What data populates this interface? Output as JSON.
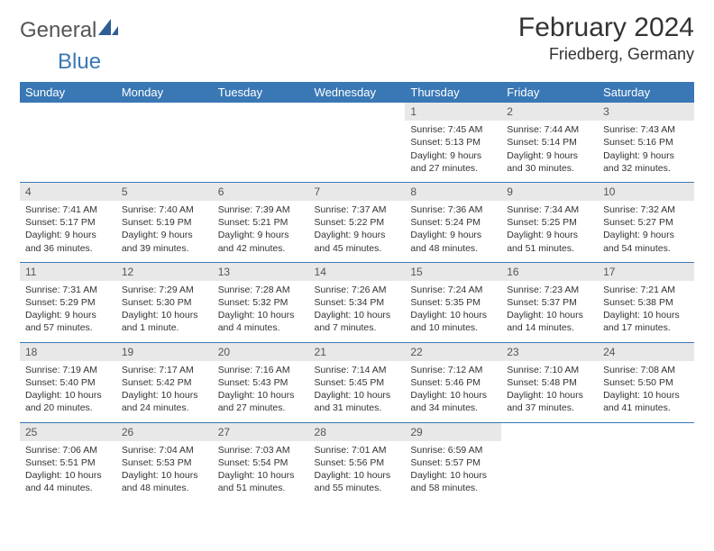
{
  "brand": {
    "name1": "General",
    "name2": "Blue"
  },
  "title": "February 2024",
  "location": "Friedberg, Germany",
  "colors": {
    "header_bg": "#3a78b5",
    "header_text": "#ffffff",
    "daynum_bg": "#e8e8e8",
    "rule": "#3a78b5",
    "text": "#333333",
    "page_bg": "#ffffff"
  },
  "typography": {
    "title_fontsize": 30,
    "location_fontsize": 18,
    "weekday_fontsize": 13,
    "cell_fontsize": 10.5
  },
  "weekdays": [
    "Sunday",
    "Monday",
    "Tuesday",
    "Wednesday",
    "Thursday",
    "Friday",
    "Saturday"
  ],
  "weeks": [
    [
      null,
      null,
      null,
      null,
      {
        "d": "1",
        "sr": "Sunrise: 7:45 AM",
        "ss": "Sunset: 5:13 PM",
        "dl": "Daylight: 9 hours and 27 minutes."
      },
      {
        "d": "2",
        "sr": "Sunrise: 7:44 AM",
        "ss": "Sunset: 5:14 PM",
        "dl": "Daylight: 9 hours and 30 minutes."
      },
      {
        "d": "3",
        "sr": "Sunrise: 7:43 AM",
        "ss": "Sunset: 5:16 PM",
        "dl": "Daylight: 9 hours and 32 minutes."
      }
    ],
    [
      {
        "d": "4",
        "sr": "Sunrise: 7:41 AM",
        "ss": "Sunset: 5:17 PM",
        "dl": "Daylight: 9 hours and 36 minutes."
      },
      {
        "d": "5",
        "sr": "Sunrise: 7:40 AM",
        "ss": "Sunset: 5:19 PM",
        "dl": "Daylight: 9 hours and 39 minutes."
      },
      {
        "d": "6",
        "sr": "Sunrise: 7:39 AM",
        "ss": "Sunset: 5:21 PM",
        "dl": "Daylight: 9 hours and 42 minutes."
      },
      {
        "d": "7",
        "sr": "Sunrise: 7:37 AM",
        "ss": "Sunset: 5:22 PM",
        "dl": "Daylight: 9 hours and 45 minutes."
      },
      {
        "d": "8",
        "sr": "Sunrise: 7:36 AM",
        "ss": "Sunset: 5:24 PM",
        "dl": "Daylight: 9 hours and 48 minutes."
      },
      {
        "d": "9",
        "sr": "Sunrise: 7:34 AM",
        "ss": "Sunset: 5:25 PM",
        "dl": "Daylight: 9 hours and 51 minutes."
      },
      {
        "d": "10",
        "sr": "Sunrise: 7:32 AM",
        "ss": "Sunset: 5:27 PM",
        "dl": "Daylight: 9 hours and 54 minutes."
      }
    ],
    [
      {
        "d": "11",
        "sr": "Sunrise: 7:31 AM",
        "ss": "Sunset: 5:29 PM",
        "dl": "Daylight: 9 hours and 57 minutes."
      },
      {
        "d": "12",
        "sr": "Sunrise: 7:29 AM",
        "ss": "Sunset: 5:30 PM",
        "dl": "Daylight: 10 hours and 1 minute."
      },
      {
        "d": "13",
        "sr": "Sunrise: 7:28 AM",
        "ss": "Sunset: 5:32 PM",
        "dl": "Daylight: 10 hours and 4 minutes."
      },
      {
        "d": "14",
        "sr": "Sunrise: 7:26 AM",
        "ss": "Sunset: 5:34 PM",
        "dl": "Daylight: 10 hours and 7 minutes."
      },
      {
        "d": "15",
        "sr": "Sunrise: 7:24 AM",
        "ss": "Sunset: 5:35 PM",
        "dl": "Daylight: 10 hours and 10 minutes."
      },
      {
        "d": "16",
        "sr": "Sunrise: 7:23 AM",
        "ss": "Sunset: 5:37 PM",
        "dl": "Daylight: 10 hours and 14 minutes."
      },
      {
        "d": "17",
        "sr": "Sunrise: 7:21 AM",
        "ss": "Sunset: 5:38 PM",
        "dl": "Daylight: 10 hours and 17 minutes."
      }
    ],
    [
      {
        "d": "18",
        "sr": "Sunrise: 7:19 AM",
        "ss": "Sunset: 5:40 PM",
        "dl": "Daylight: 10 hours and 20 minutes."
      },
      {
        "d": "19",
        "sr": "Sunrise: 7:17 AM",
        "ss": "Sunset: 5:42 PM",
        "dl": "Daylight: 10 hours and 24 minutes."
      },
      {
        "d": "20",
        "sr": "Sunrise: 7:16 AM",
        "ss": "Sunset: 5:43 PM",
        "dl": "Daylight: 10 hours and 27 minutes."
      },
      {
        "d": "21",
        "sr": "Sunrise: 7:14 AM",
        "ss": "Sunset: 5:45 PM",
        "dl": "Daylight: 10 hours and 31 minutes."
      },
      {
        "d": "22",
        "sr": "Sunrise: 7:12 AM",
        "ss": "Sunset: 5:46 PM",
        "dl": "Daylight: 10 hours and 34 minutes."
      },
      {
        "d": "23",
        "sr": "Sunrise: 7:10 AM",
        "ss": "Sunset: 5:48 PM",
        "dl": "Daylight: 10 hours and 37 minutes."
      },
      {
        "d": "24",
        "sr": "Sunrise: 7:08 AM",
        "ss": "Sunset: 5:50 PM",
        "dl": "Daylight: 10 hours and 41 minutes."
      }
    ],
    [
      {
        "d": "25",
        "sr": "Sunrise: 7:06 AM",
        "ss": "Sunset: 5:51 PM",
        "dl": "Daylight: 10 hours and 44 minutes."
      },
      {
        "d": "26",
        "sr": "Sunrise: 7:04 AM",
        "ss": "Sunset: 5:53 PM",
        "dl": "Daylight: 10 hours and 48 minutes."
      },
      {
        "d": "27",
        "sr": "Sunrise: 7:03 AM",
        "ss": "Sunset: 5:54 PM",
        "dl": "Daylight: 10 hours and 51 minutes."
      },
      {
        "d": "28",
        "sr": "Sunrise: 7:01 AM",
        "ss": "Sunset: 5:56 PM",
        "dl": "Daylight: 10 hours and 55 minutes."
      },
      {
        "d": "29",
        "sr": "Sunrise: 6:59 AM",
        "ss": "Sunset: 5:57 PM",
        "dl": "Daylight: 10 hours and 58 minutes."
      },
      null,
      null
    ]
  ]
}
